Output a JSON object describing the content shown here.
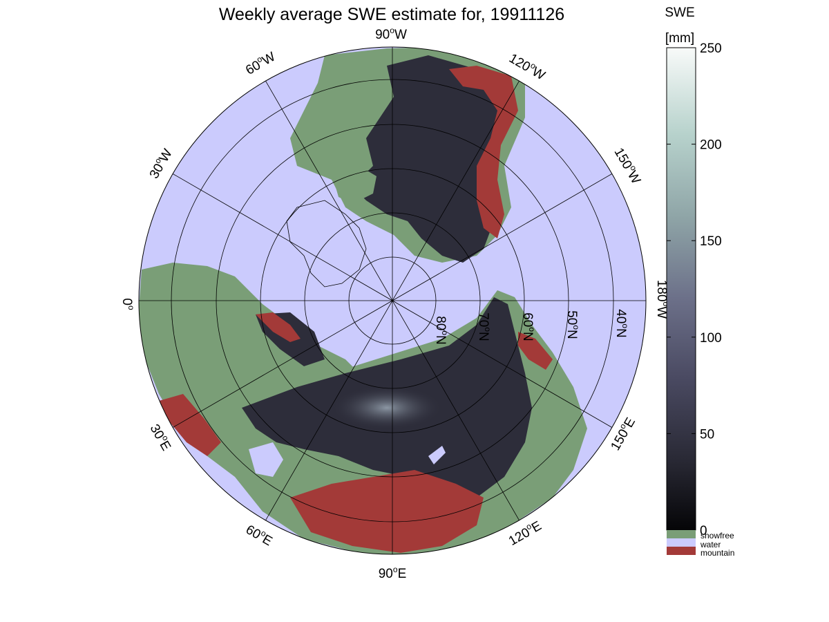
{
  "title": "Weekly average SWE estimate for, 19911126",
  "colorbar": {
    "title_line1": "SWE",
    "title_line2": "[mm]",
    "ticks": [
      "250",
      "200",
      "150",
      "100",
      "50",
      "0"
    ],
    "tick_values": [
      250,
      200,
      150,
      100,
      50,
      0
    ],
    "range": [
      0,
      250
    ],
    "colors": [
      "#050507",
      "#2a2a36",
      "#4b4b63",
      "#6c7089",
      "#8fa5a7",
      "#b7d2cc",
      "#f8faf9"
    ]
  },
  "legend": [
    {
      "label": "snowfree",
      "color": "#7a9e77"
    },
    {
      "label": "water",
      "color": "#cbcbfd"
    },
    {
      "label": "mountain",
      "color": "#a33a38"
    }
  ],
  "map": {
    "projection": "north polar stereographic",
    "ocean_color": "#cbcbfd",
    "land_snowfree_color": "#7a9e77",
    "snow_color": "#2d2d3a",
    "mountain_color": "#a33a38",
    "graticule_color": "#000000"
  },
  "longitude_labels": [
    {
      "deg": "90",
      "suffix": "W"
    },
    {
      "deg": "120",
      "suffix": "W"
    },
    {
      "deg": "150",
      "suffix": "W"
    },
    {
      "deg": "180",
      "suffix": "W"
    },
    {
      "deg": "150",
      "suffix": "E"
    },
    {
      "deg": "120",
      "suffix": "E"
    },
    {
      "deg": "90",
      "suffix": "E"
    },
    {
      "deg": "60",
      "suffix": "E"
    },
    {
      "deg": "30",
      "suffix": "E"
    },
    {
      "deg": "0",
      "suffix": ""
    },
    {
      "deg": "30",
      "suffix": "W"
    },
    {
      "deg": "60",
      "suffix": "W"
    }
  ],
  "latitude_labels": [
    {
      "deg": "80",
      "suffix": "N"
    },
    {
      "deg": "70",
      "suffix": "N"
    },
    {
      "deg": "60",
      "suffix": "N"
    },
    {
      "deg": "50",
      "suffix": "N"
    },
    {
      "deg": "40",
      "suffix": "N"
    }
  ]
}
